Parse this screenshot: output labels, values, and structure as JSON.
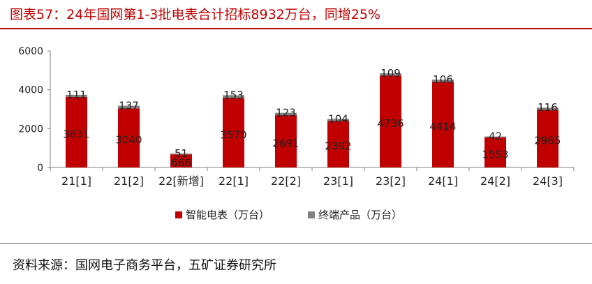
{
  "header": {
    "title": "图表57：24年国网第1-3批电表合计招标8932万台，同增25%"
  },
  "footer": {
    "source": "资料来源：国网电子商务平台，五矿证券研究所"
  },
  "colors": {
    "accent": "#c00000",
    "series1": "#c00000",
    "series2": "#808080",
    "label": "#222222"
  },
  "chart_data": {
    "type": "bar",
    "stacked": true,
    "categories": [
      "21[1]",
      "21[2]",
      "22[新增]",
      "22[1]",
      "22[2]",
      "23[1]",
      "23[2]",
      "24[1]",
      "24[2]",
      "24[3]"
    ],
    "series": [
      {
        "name": "智能电表（万台）",
        "values": [
          3631,
          3040,
          666,
          3570,
          2691,
          2392,
          4736,
          4414,
          1553,
          2965
        ]
      },
      {
        "name": "终端产品（万台）",
        "values": [
          111,
          137,
          51,
          153,
          123,
          104,
          109,
          106,
          42,
          116
        ]
      }
    ],
    "yticks": [
      "0",
      "2000",
      "4000",
      "6000"
    ],
    "ylim": [
      0,
      6000
    ],
    "legend_position": "bottom",
    "grid": false
  }
}
